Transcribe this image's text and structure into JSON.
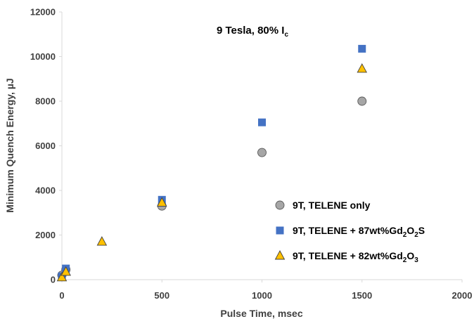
{
  "chart_data": {
    "type": "scatter",
    "title": "",
    "annotation": "9 Tesla, 80% I",
    "annotation_sub": "c",
    "xlabel": "Pulse Time, msec",
    "ylabel": "Minimum Quench Energy, µJ",
    "xlim": [
      0,
      2000
    ],
    "ylim": [
      0,
      12000
    ],
    "x_ticks": [
      "0",
      "500",
      "1000",
      "1500",
      "2000"
    ],
    "y_ticks": [
      "0",
      "2000",
      "4000",
      "6000",
      "8000",
      "10000",
      "12000"
    ],
    "grid": false,
    "legend_position": "lower-right",
    "series": [
      {
        "name": "9T, TELENE only",
        "marker": "circle",
        "color": "#a6a6a6",
        "points": [
          [
            0,
            200
          ],
          [
            20,
            450
          ],
          [
            500,
            3300
          ],
          [
            1000,
            5700
          ],
          [
            1500,
            8000
          ]
        ]
      },
      {
        "name": "9T, TELENE + 87wt%Gd2O2S",
        "marker": "square",
        "color": "#4472c4",
        "points": [
          [
            0,
            150
          ],
          [
            20,
            500
          ],
          [
            500,
            3580
          ],
          [
            1000,
            7050
          ],
          [
            1500,
            10350
          ]
        ]
      },
      {
        "name": "9T, TELENE + 82wt%Gd2O3",
        "marker": "triangle",
        "color": "#ffc000",
        "points": [
          [
            0,
            100
          ],
          [
            20,
            350
          ],
          [
            200,
            1700
          ],
          [
            500,
            3450
          ],
          [
            1500,
            9450
          ]
        ]
      }
    ]
  },
  "legend": {
    "items": [
      {
        "parts": [
          {
            "t": "9T, TELENE only"
          }
        ]
      },
      {
        "parts": [
          {
            "t": "9T, TELENE + 87wt%Gd"
          },
          {
            "t": "2",
            "sub": true
          },
          {
            "t": "O"
          },
          {
            "t": "2",
            "sub": true
          },
          {
            "t": "S"
          }
        ]
      },
      {
        "parts": [
          {
            "t": "9T, TELENE + 82wt%Gd"
          },
          {
            "t": "2",
            "sub": true
          },
          {
            "t": "O"
          },
          {
            "t": "3",
            "sub": true
          }
        ]
      }
    ]
  }
}
